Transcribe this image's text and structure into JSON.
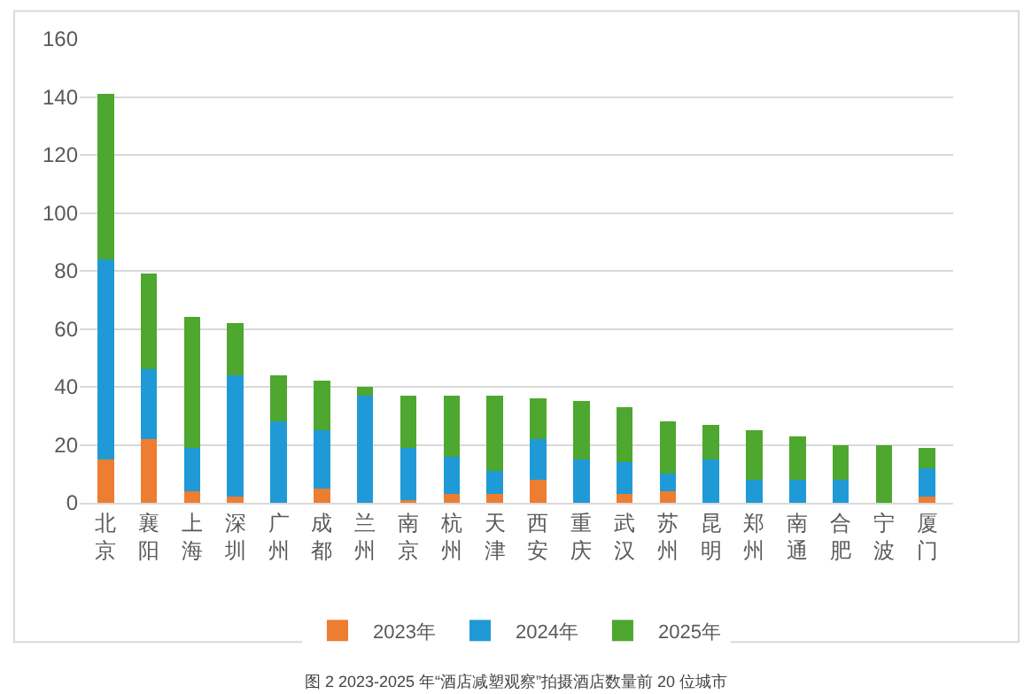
{
  "chart_data": {
    "type": "bar",
    "stacked": true,
    "categories": [
      "北京",
      "襄阳",
      "上海",
      "深圳",
      "广州",
      "成都",
      "兰州",
      "南京",
      "杭州",
      "天津",
      "西安",
      "重庆",
      "武汉",
      "苏州",
      "昆明",
      "郑州",
      "南通",
      "合肥",
      "宁波",
      "厦门"
    ],
    "series": [
      {
        "name": "2023年",
        "color": "#ed7d31",
        "values": [
          15,
          22,
          4,
          2,
          0,
          5,
          0,
          1,
          3,
          3,
          8,
          0,
          3,
          4,
          0,
          0,
          0,
          0,
          0,
          2
        ]
      },
      {
        "name": "2024年",
        "color": "#1f9ad6",
        "values": [
          69,
          24,
          15,
          42,
          28,
          20,
          37,
          18,
          13,
          8,
          14,
          15,
          11,
          6,
          15,
          8,
          8,
          8,
          0,
          10
        ]
      },
      {
        "name": "2025年",
        "color": "#4ea72e",
        "values": [
          57,
          33,
          45,
          18,
          16,
          17,
          3,
          18,
          21,
          26,
          14,
          20,
          19,
          18,
          12,
          17,
          15,
          12,
          20,
          7
        ]
      }
    ],
    "ylim": [
      0,
      160
    ],
    "yticks": [
      0,
      20,
      40,
      60,
      80,
      100,
      120,
      140,
      160
    ],
    "grid": "y",
    "legend": "bottom",
    "annotations": [
      "图 2 2023-2025 年“酒店减塑观察”拍摄酒店数量前 20 位城市"
    ]
  }
}
